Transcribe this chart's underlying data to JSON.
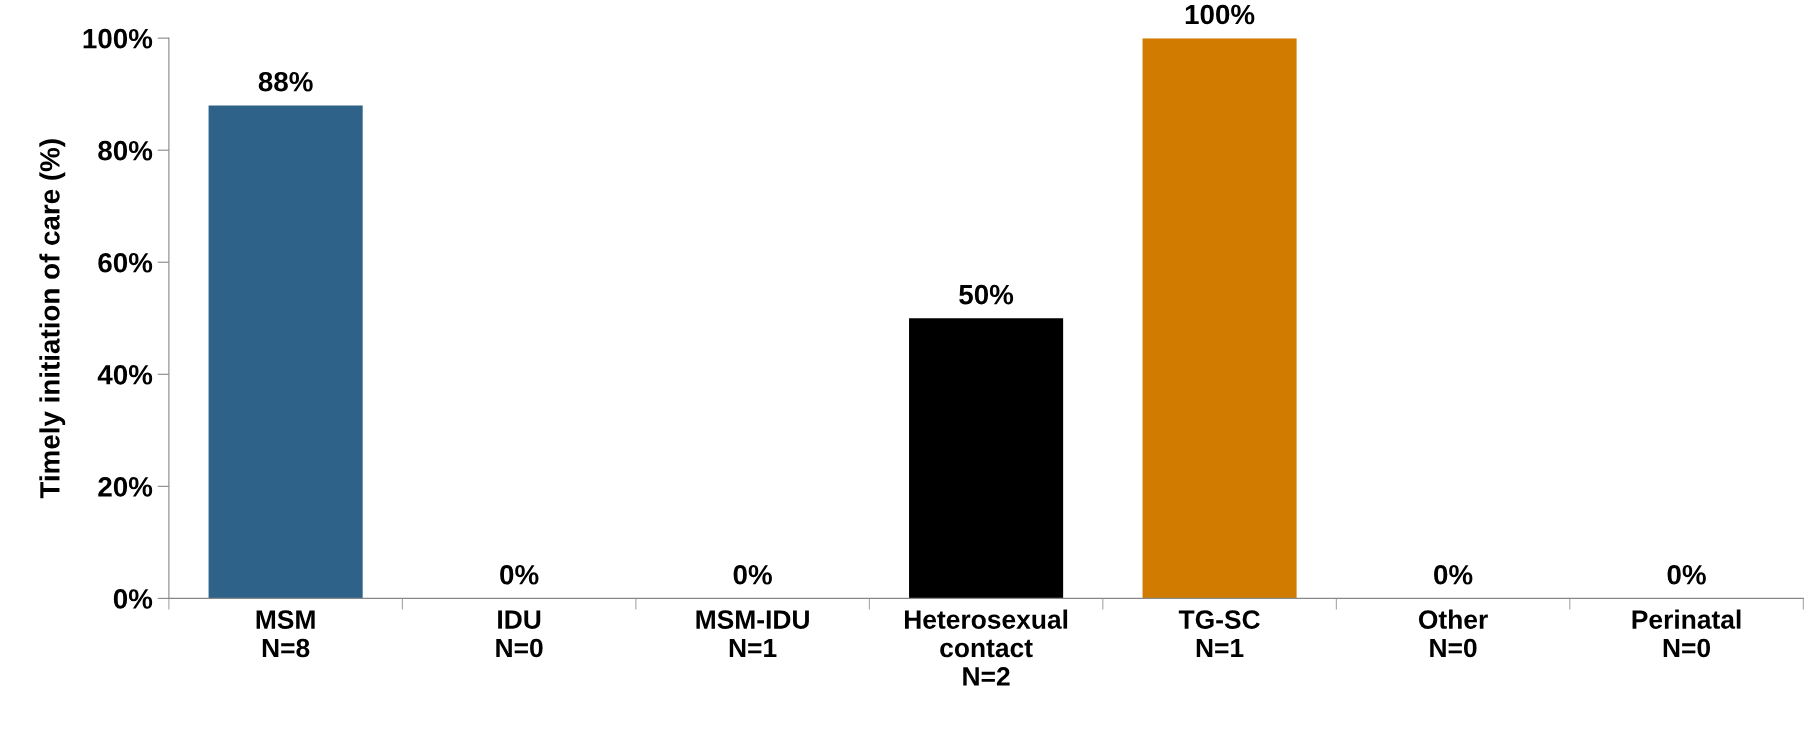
{
  "chart_data": {
    "type": "bar",
    "ylabel": "Timely initiation of care (%)",
    "categories": [
      "MSM\nN=8",
      "IDU\nN=0",
      "MSM-IDU\nN=1",
      "Heterosexual\ncontact\nN=2",
      "TG-SC\nN=1",
      "Other\nN=0",
      "Perinatal\nN=0"
    ],
    "values": [
      88,
      0,
      0,
      50,
      100,
      0,
      0
    ],
    "colors": [
      "#2e6289",
      "#2e6289",
      "#2e6289",
      "#000000",
      "#d17c00",
      "#2e6289",
      "#2e6289"
    ],
    "value_labels": [
      "88%",
      "0%",
      "0%",
      "50%",
      "100%",
      "0%",
      "0%"
    ],
    "ylim": [
      0,
      100
    ],
    "yticks": [
      {
        "value": 0,
        "label": "0%"
      },
      {
        "value": 20,
        "label": "20%"
      },
      {
        "value": 40,
        "label": "40%"
      },
      {
        "value": 60,
        "label": "60%"
      },
      {
        "value": 80,
        "label": "80%"
      },
      {
        "value": 100,
        "label": "100%"
      }
    ],
    "grid": false,
    "legend": false
  }
}
